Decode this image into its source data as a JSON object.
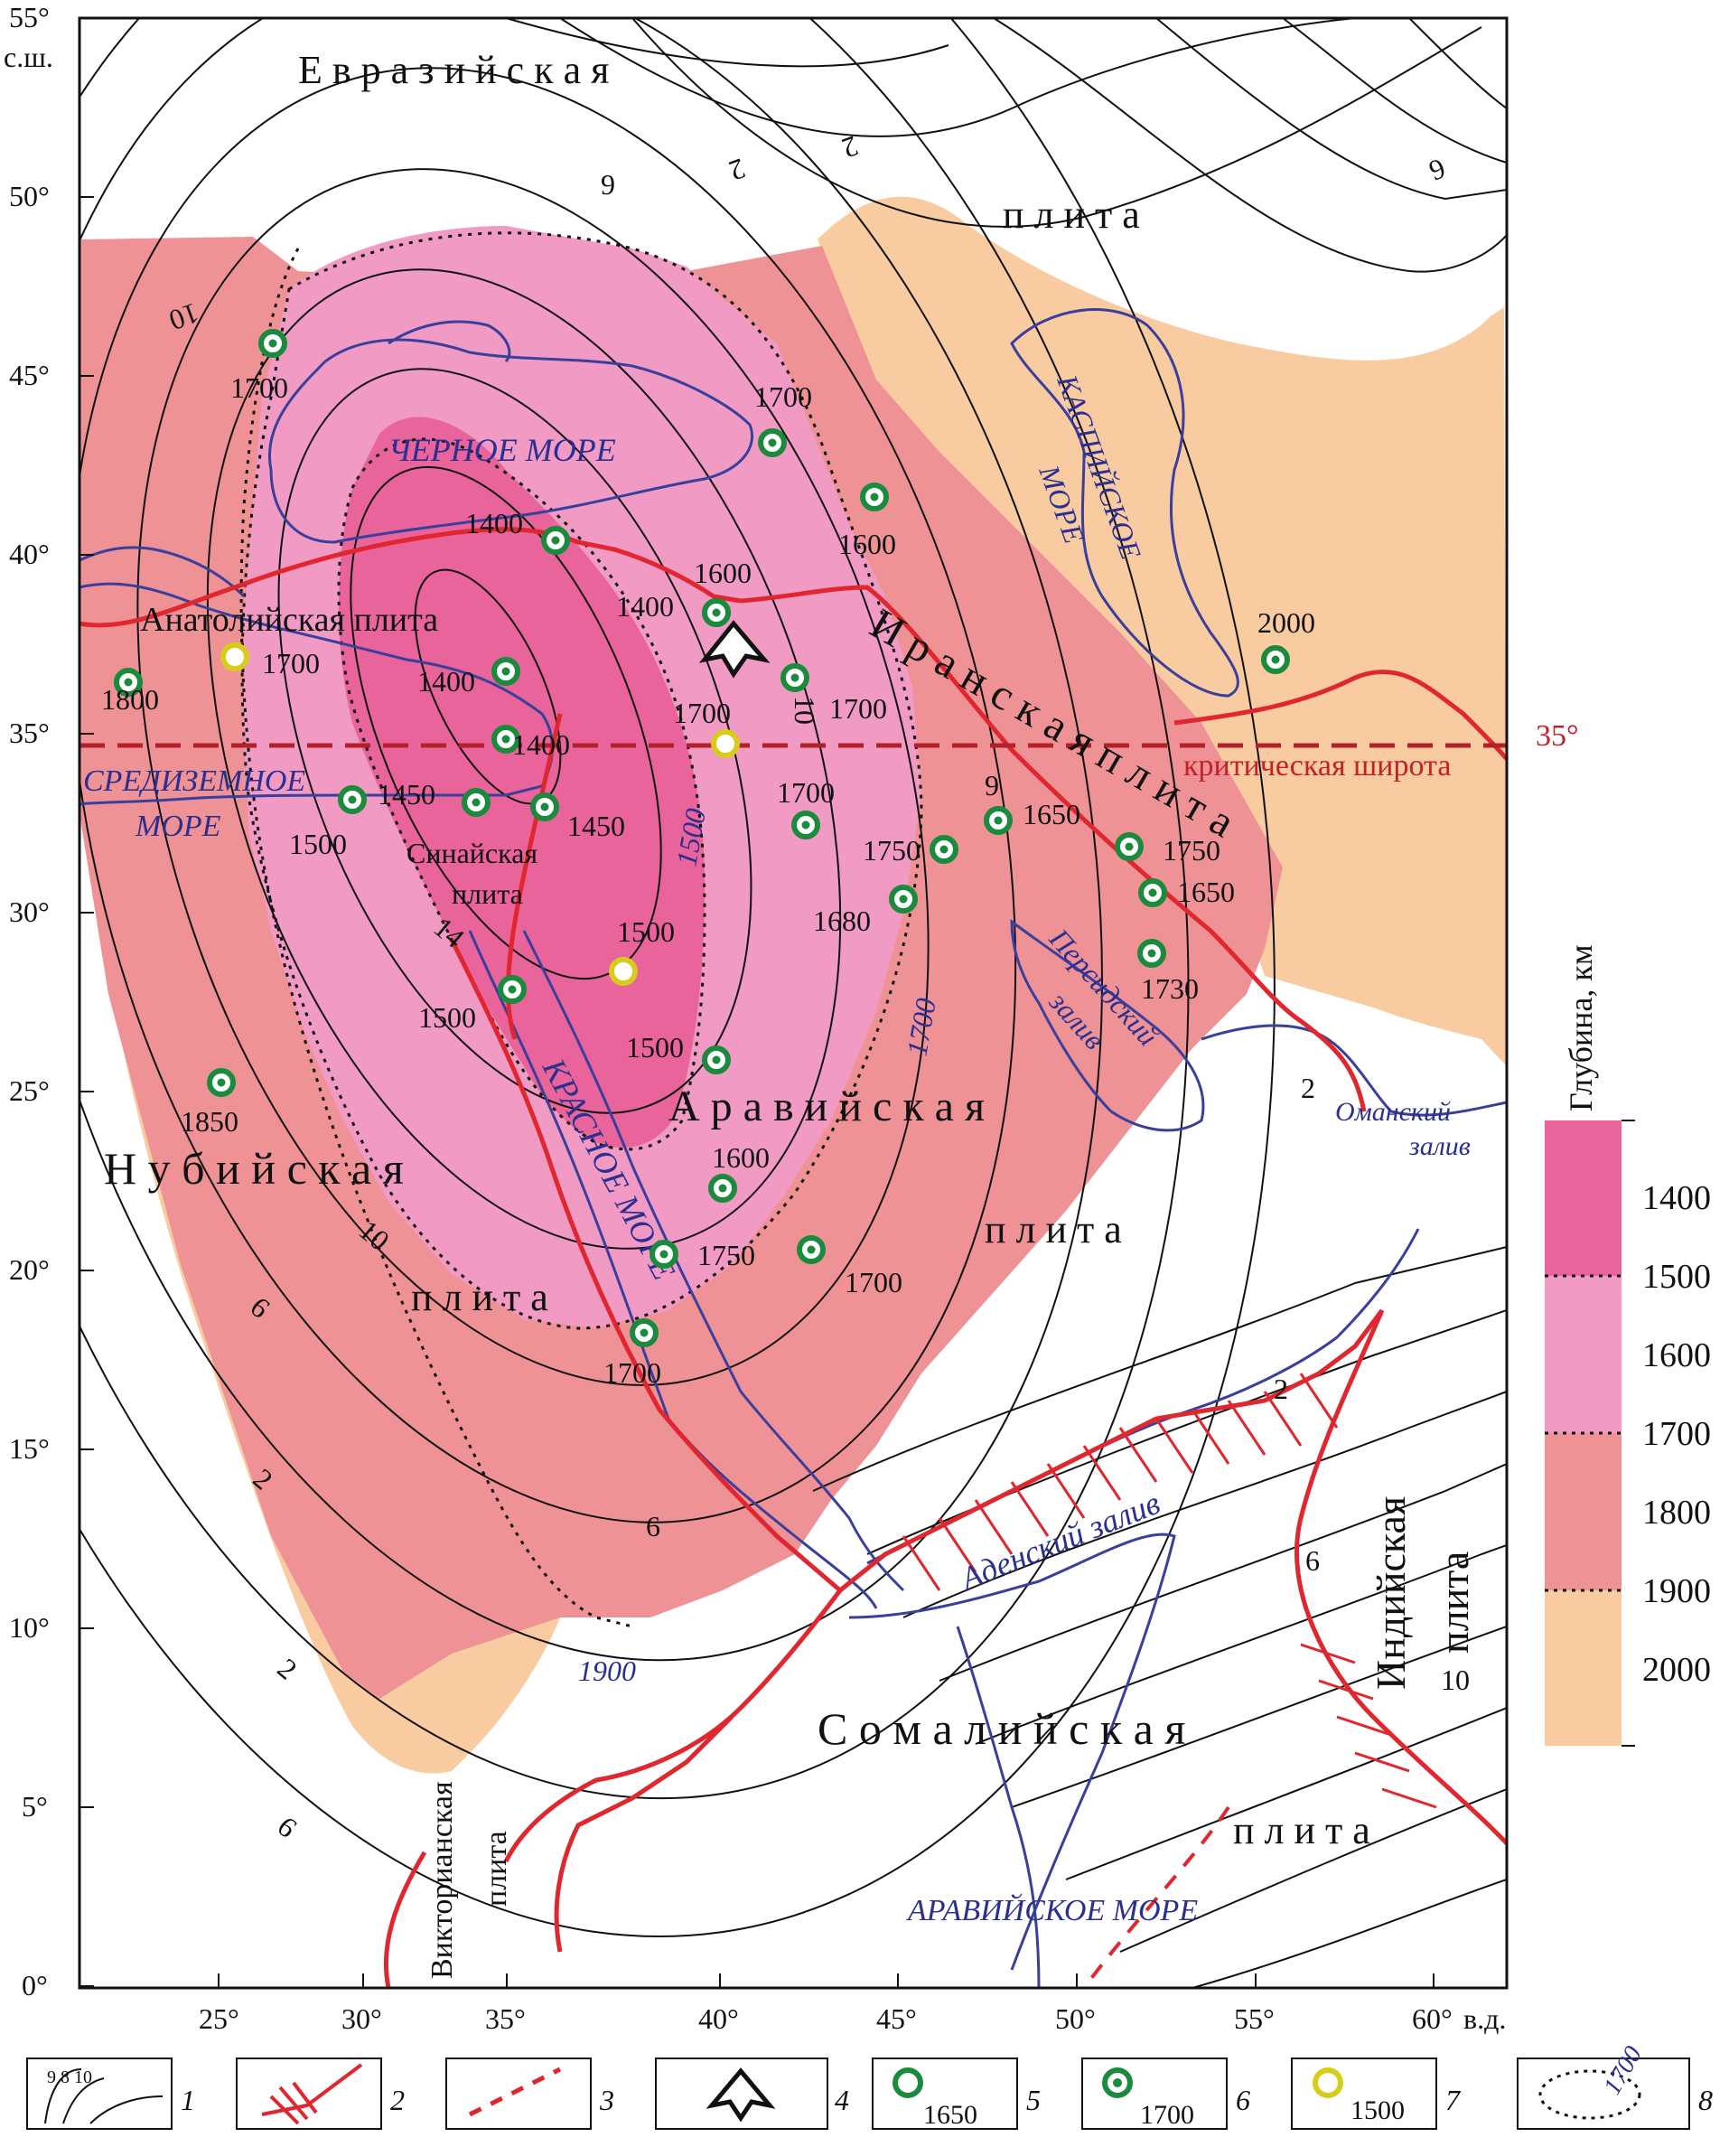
{
  "lat_labels": [
    "55°",
    "50°",
    "45°",
    "40°",
    "35°",
    "30°",
    "25°",
    "20°",
    "15°",
    "10°",
    "5°",
    "0°"
  ],
  "lat_unit_label": "с.ш.",
  "lon_labels": [
    "25°",
    "30°",
    "35°",
    "40°",
    "45°",
    "50°",
    "55°",
    "60°"
  ],
  "lon_unit_label": "в.д.",
  "plates": {
    "eurasian_1": "Е в р а з и й с к а я",
    "eurasian_2": "п л и т а",
    "anatolian": "Анатолийская плита",
    "iranian": "И р а н с к а я   п л и т а",
    "arabian_1": "А р а в и й с к а я",
    "arabian_2": "п л и т а",
    "nubian_1": "Н у б и й с к а я",
    "nubian_2": "п л и т а",
    "sinai_1": "Синайская",
    "sinai_2": "плита",
    "somali_1": "С о м а л и й с к а я",
    "somali_2": "п л и т а",
    "indian_1": "Индийская",
    "indian_2": "плита",
    "victorian_1": "Викторианская",
    "victorian_2": "плита"
  },
  "seas": {
    "black_sea": "ЧЕРНОЕ МОРЕ",
    "caspian_1": "КАСПИЙСКОЕ",
    "caspian_2": "МОРЕ",
    "mediterranean_1": "СРЕДИЗЕМНОЕ",
    "mediterranean_2": "МОРЕ",
    "red_sea": "КРАСНОЕ МОРЕ",
    "persian_1": "Персидский",
    "persian_2": "залив",
    "oman_1": "Оманский",
    "oman_2": "залив",
    "aden": "Аденский залив",
    "arabian_sea": "АРАВИЙСКОЕ МОРЕ"
  },
  "critical_latitude": {
    "label": "критическая широта",
    "value": "35°"
  },
  "contour_labels": [
    "10",
    "9",
    "2",
    "2",
    "6",
    "10",
    "9",
    "14",
    "10",
    "6",
    "2",
    "2",
    "6",
    "2",
    "2",
    "6",
    "10",
    "6",
    "1500",
    "1700",
    "1900"
  ],
  "stations": [
    {
      "value": "1700",
      "type": "6"
    },
    {
      "value": "1700",
      "type": "6"
    },
    {
      "value": "1600",
      "type": "6"
    },
    {
      "value": "1400",
      "type": "6"
    },
    {
      "value": "1600",
      "type": "6"
    },
    {
      "value": "1400",
      "type": "6"
    },
    {
      "value": "1700",
      "type": "6"
    },
    {
      "value": "1700",
      "type": "7"
    },
    {
      "value": "1800",
      "type": "6"
    },
    {
      "value": "1400",
      "type": "6"
    },
    {
      "value": "1400",
      "type": "6"
    },
    {
      "value": "1700",
      "type": "7"
    },
    {
      "value": "2000",
      "type": "6"
    },
    {
      "value": "1500",
      "type": "6"
    },
    {
      "value": "1450",
      "type": "6"
    },
    {
      "value": "1450",
      "type": "6"
    },
    {
      "value": "1700",
      "type": "6"
    },
    {
      "value": "1750",
      "type": "6"
    },
    {
      "value": "1650",
      "type": "6"
    },
    {
      "value": "1750",
      "type": "6"
    },
    {
      "value": "1650",
      "type": "6"
    },
    {
      "value": "1680",
      "type": "6"
    },
    {
      "value": "1500",
      "type": "7"
    },
    {
      "value": "1730",
      "type": "6"
    },
    {
      "value": "1500",
      "type": "6"
    },
    {
      "value": "1500",
      "type": "6"
    },
    {
      "value": "1850",
      "type": "6"
    },
    {
      "value": "1600",
      "type": "6"
    },
    {
      "value": "1750",
      "type": "6"
    },
    {
      "value": "1700",
      "type": "6"
    },
    {
      "value": "1700",
      "type": "6"
    }
  ],
  "depth_scale": {
    "title": "Глубина, км",
    "labels": [
      "1400",
      "1500",
      "1600",
      "1700",
      "1800",
      "1900",
      "2000"
    ],
    "colors": [
      "#e8649a",
      "#f09ac4",
      "#ef9296",
      "#f8cba0"
    ]
  },
  "colors": {
    "zone_1400_1500": "#e8649a",
    "zone_1500_1700": "#f09ac4",
    "zone_1700_1900": "#ef9296",
    "zone_1900_2000": "#f8cba0",
    "plate_boundary": "#e0262e",
    "coastline": "#3a3f9c",
    "critical_line": "#b3202a",
    "station_green": "#1a8a3c",
    "station_yellow": "#d8cc1a"
  },
  "legend": [
    {
      "number": "1",
      "sample": "9 8 10"
    },
    {
      "number": "2",
      "sample": ""
    },
    {
      "number": "3",
      "sample": ""
    },
    {
      "number": "4",
      "sample": ""
    },
    {
      "number": "5",
      "sample": "1650"
    },
    {
      "number": "6",
      "sample": "1700"
    },
    {
      "number": "7",
      "sample": "1500"
    },
    {
      "number": "8",
      "sample": "1700"
    }
  ]
}
